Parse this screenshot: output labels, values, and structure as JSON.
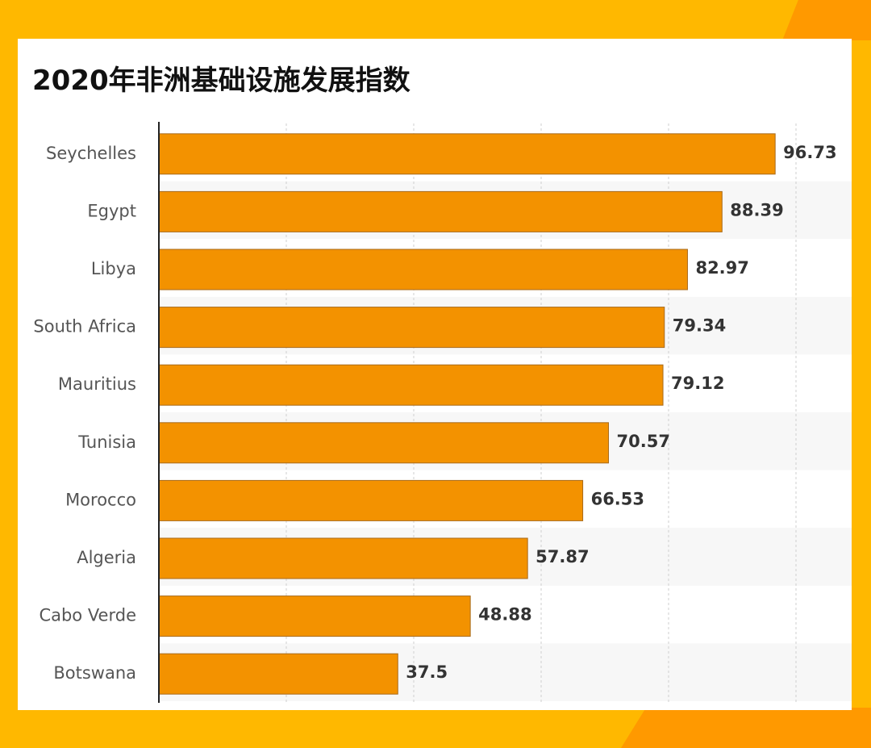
{
  "chart_data": {
    "type": "bar",
    "orientation": "horizontal",
    "title": "2020年非洲基础设施发展指数",
    "categories": [
      "Seychelles",
      "Egypt",
      "Libya",
      "South Africa",
      "Mauritius",
      "Tunisia",
      "Morocco",
      "Algeria",
      "Cabo Verde",
      "Botswana"
    ],
    "values": [
      96.73,
      88.39,
      82.97,
      79.34,
      79.12,
      70.57,
      66.53,
      57.87,
      48.88,
      37.5
    ],
    "value_labels": [
      "96.73",
      "88.39",
      "82.97",
      "79.34",
      "79.12",
      "70.57",
      "66.53",
      "57.87",
      "48.88",
      "37.5"
    ],
    "xlim": [
      0,
      100
    ],
    "grid": true,
    "colors": {
      "bar": "#F39200",
      "bar_edge": "#A86A1A",
      "row_alt": "#F7F7F7",
      "grid": "#CFCFCF",
      "axis": "#222222"
    }
  }
}
